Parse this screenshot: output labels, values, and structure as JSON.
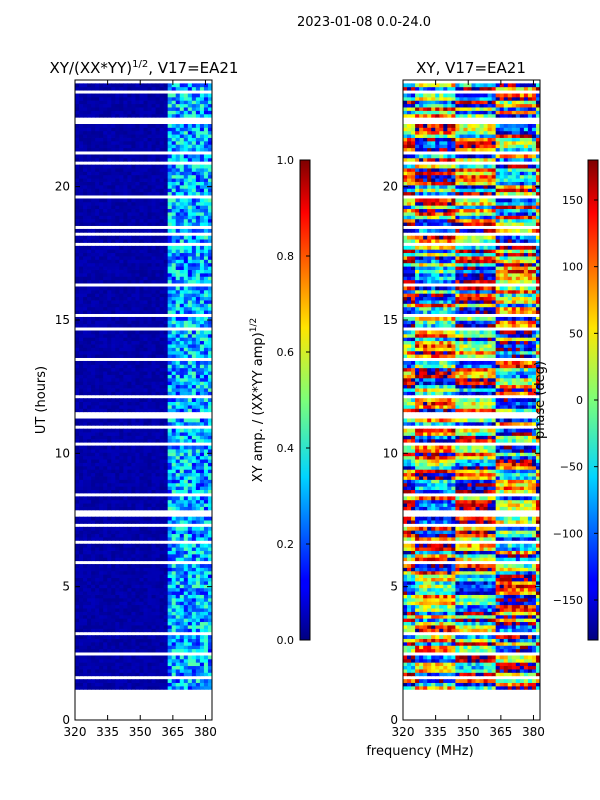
{
  "suptitle": "2023-01-08 0.0-24.0",
  "chart_data": [
    {
      "type": "heatmap",
      "title_main": "XY/(XX*YY)",
      "title_exp": "1/2",
      "title_rest": ", V17=EA21",
      "xlabel": "",
      "ylabel": "UT (hours)",
      "xlim": [
        320,
        383
      ],
      "ylim": [
        0,
        24
      ],
      "xticks": [
        "320",
        "335",
        "350",
        "365",
        "380"
      ],
      "xtick_values": [
        320,
        335,
        350,
        365,
        380
      ],
      "yticks": [
        "0",
        "5",
        "10",
        "15",
        "20"
      ],
      "ytick_values": [
        0,
        5,
        10,
        15,
        20
      ],
      "colorbar": {
        "label": "XY amp. / (XX*YY amp)",
        "label_exp": "1/2",
        "range": [
          0,
          1
        ],
        "ticks": [
          "0.0",
          "0.2",
          "0.4",
          "0.6",
          "0.8",
          "1.0"
        ],
        "tick_values": [
          0,
          0.2,
          0.4,
          0.6,
          0.8,
          1.0
        ]
      }
    },
    {
      "type": "heatmap",
      "title": "XY, V17=EA21",
      "xlabel": "frequency (MHz)",
      "ylabel": "",
      "xlim": [
        320,
        383
      ],
      "ylim": [
        0,
        24
      ],
      "xticks": [
        "320",
        "335",
        "350",
        "365",
        "380"
      ],
      "xtick_values": [
        320,
        335,
        350,
        365,
        380
      ],
      "yticks": [
        "0",
        "5",
        "10",
        "15",
        "20"
      ],
      "ytick_values": [
        0,
        5,
        10,
        15,
        20
      ],
      "colorbar": {
        "label": "phase (deg)",
        "range": [
          -180,
          180
        ],
        "ticks": [
          "−150",
          "−100",
          "−50",
          "0",
          "50",
          "100",
          "150"
        ],
        "tick_values": [
          -150,
          -100,
          -50,
          0,
          50,
          100,
          150
        ]
      }
    }
  ]
}
